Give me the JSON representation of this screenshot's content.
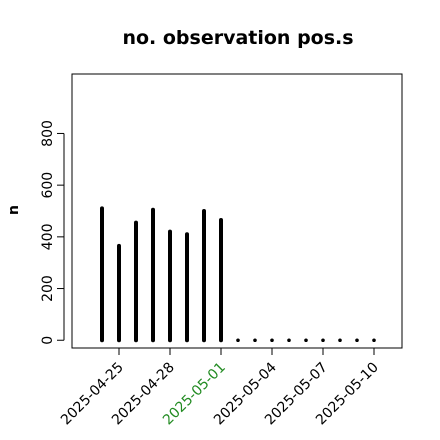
{
  "chart_data": {
    "type": "bar",
    "title": "no. observation pos.s",
    "ylabel": "n",
    "xlabel": "",
    "ylim": [
      -30,
      1030
    ],
    "yticks": [
      0,
      200,
      400,
      600,
      800
    ],
    "grid": false,
    "legend": "none",
    "bar_color": "#000000",
    "x": [
      "2025-04-24",
      "2025-04-25",
      "2025-04-26",
      "2025-04-27",
      "2025-04-28",
      "2025-04-29",
      "2025-04-30",
      "2025-05-01",
      "2025-05-02",
      "2025-05-03",
      "2025-05-04",
      "2025-05-05",
      "2025-05-06",
      "2025-05-07",
      "2025-05-08",
      "2025-05-09",
      "2025-05-10"
    ],
    "values": [
      510,
      365,
      455,
      505,
      420,
      410,
      500,
      465,
      0,
      0,
      0,
      0,
      0,
      0,
      0,
      0,
      0
    ],
    "xtick_labels": [
      {
        "date": "2025-04-25",
        "label": "2025-04-25",
        "color": "#000000"
      },
      {
        "date": "2025-04-28",
        "label": "2025-04-28",
        "color": "#000000"
      },
      {
        "date": "2025-05-01",
        "label": "2025-05-01",
        "color": "#228B22"
      },
      {
        "date": "2025-05-04",
        "label": "2025-05-04",
        "color": "#000000"
      },
      {
        "date": "2025-05-07",
        "label": "2025-05-07",
        "color": "#000000"
      },
      {
        "date": "2025-05-10",
        "label": "2025-05-10",
        "color": "#000000"
      }
    ]
  }
}
